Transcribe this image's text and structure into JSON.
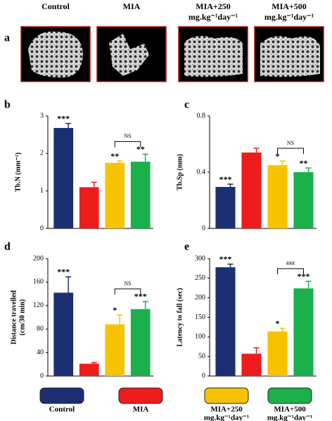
{
  "panel_a": {
    "label": "a",
    "groups": [
      [
        "Control"
      ],
      [
        "MIA"
      ],
      [
        "MIA+250",
        "mg.kg⁻¹day⁻¹"
      ],
      [
        "MIA+500",
        "mg.kg⁻¹day⁻¹"
      ]
    ]
  },
  "chart_data": [
    {
      "type": "bar",
      "panel": "b",
      "ylabel": "Tb.N (mm⁻¹)",
      "categories": [
        null,
        null,
        null,
        null
      ],
      "values": [
        2.68,
        1.1,
        1.75,
        1.78
      ],
      "errors": [
        0.12,
        0.13,
        0.05,
        0.2
      ],
      "colors": [
        "#1b2f72",
        "#ee1d1d",
        "#f7c300",
        "#1cb04d"
      ],
      "annotations": [
        "***",
        null,
        "**",
        "**"
      ],
      "bracket_label": "NS",
      "ylim": [
        0,
        3
      ],
      "yticks": [
        0,
        1,
        2,
        3
      ]
    },
    {
      "type": "bar",
      "panel": "c",
      "ylabel": "Tb.Sp (mm)",
      "categories": [
        null,
        null,
        null,
        null
      ],
      "values": [
        0.295,
        0.54,
        0.45,
        0.4
      ],
      "errors": [
        0.02,
        0.03,
        0.03,
        0.03
      ],
      "colors": [
        "#1b2f72",
        "#ee1d1d",
        "#f7c300",
        "#1cb04d"
      ],
      "annotations": [
        "***",
        null,
        "*",
        "**"
      ],
      "bracket_label": "NS",
      "ylim": [
        0,
        0.8
      ],
      "yticks": [
        0,
        0.4,
        0.8
      ]
    },
    {
      "type": "bar",
      "panel": "d",
      "ylabel": [
        "Distance travelled",
        "(cm/30 min)"
      ],
      "categories": [
        null,
        null,
        null,
        null
      ],
      "values": [
        142,
        21,
        88,
        114
      ],
      "errors": [
        27,
        2,
        16,
        13
      ],
      "colors": [
        "#1b2f72",
        "#ee1d1d",
        "#f7c300",
        "#1cb04d"
      ],
      "annotations": [
        "***",
        null,
        "*",
        "***"
      ],
      "bracket_label": "NS",
      "ylim": [
        0,
        200
      ],
      "yticks": [
        0,
        40,
        80,
        120,
        160,
        200
      ]
    },
    {
      "type": "bar",
      "panel": "e",
      "ylabel": "Latency to fall (sec)",
      "categories": [
        null,
        null,
        null,
        null
      ],
      "values": [
        278,
        57,
        114,
        224
      ],
      "errors": [
        8,
        15,
        8,
        18
      ],
      "colors": [
        "#1b2f72",
        "#ee1d1d",
        "#f7c300",
        "#1cb04d"
      ],
      "annotations": [
        "***",
        null,
        "*",
        "***"
      ],
      "bracket_label": "###",
      "ylim": [
        0,
        300
      ],
      "yticks": [
        0,
        50,
        100,
        150,
        200,
        250,
        300
      ]
    }
  ],
  "legend": [
    {
      "name": [
        "Control"
      ],
      "color": "#1b2f72"
    },
    {
      "name": [
        "MIA"
      ],
      "color": "#ee1d1d"
    },
    {
      "name": [
        "MIA+250",
        "mg.kg⁻¹day⁻¹"
      ],
      "color": "#f7c300"
    },
    {
      "name": [
        "MIA+500",
        "mg.kg⁻¹day⁻¹"
      ],
      "color": "#1cb04d"
    }
  ]
}
